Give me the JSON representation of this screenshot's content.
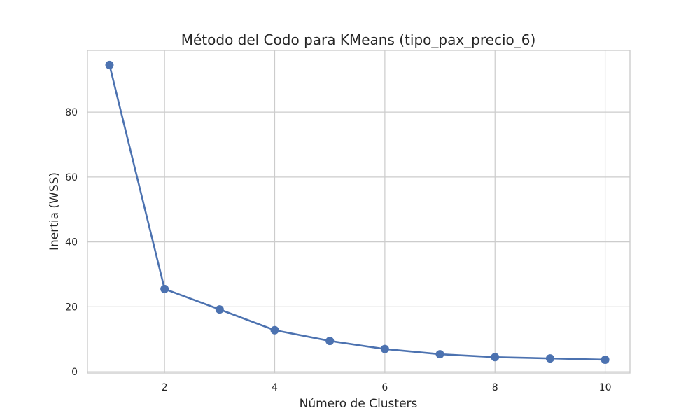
{
  "chart_data": {
    "type": "line",
    "title": "Método del Codo para KMeans (tipo_pax_precio_6)",
    "xlabel": "Número de Clusters",
    "ylabel": "Inertia (WSS)",
    "x": [
      1,
      2,
      3,
      4,
      5,
      6,
      7,
      8,
      9,
      10
    ],
    "series": [
      {
        "values": [
          94.5,
          25.5,
          19.2,
          12.8,
          9.5,
          7.0,
          5.4,
          4.5,
          4.1,
          3.7
        ],
        "color": "#4c72b0",
        "marker": "circle"
      }
    ],
    "xlim": [
      0.6,
      10.45
    ],
    "ylim": [
      -0.4,
      99.0
    ],
    "xticks": [
      2,
      4,
      6,
      8,
      10
    ],
    "yticks": [
      0,
      20,
      40,
      60,
      80
    ],
    "grid": true,
    "legend": "none"
  }
}
